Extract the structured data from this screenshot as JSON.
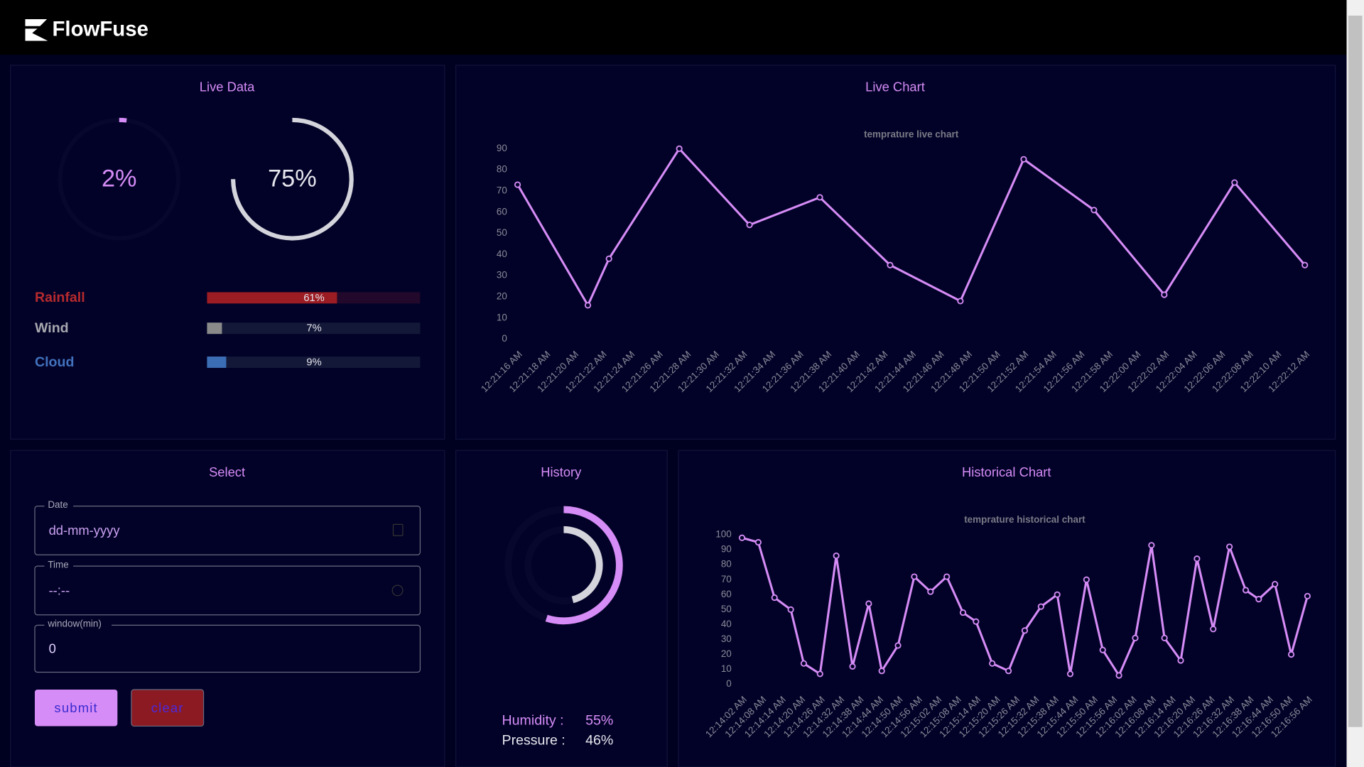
{
  "header": {
    "brand": "FlowFuse"
  },
  "live_data": {
    "title": "Live Data",
    "gauges": [
      {
        "value": 2,
        "label": "2%",
        "color": "#d68cf6"
      },
      {
        "value": 75,
        "label": "75%",
        "color": "#d4d4dc"
      }
    ],
    "bars": [
      {
        "name": "Rainfall",
        "value": 61,
        "label": "61%",
        "color": "#9b1c22"
      },
      {
        "name": "Wind",
        "value": 7,
        "label": "7%",
        "color": "#8a8a8a"
      },
      {
        "name": "Cloud",
        "value": 9,
        "label": "9%",
        "color": "#3b6db5"
      }
    ]
  },
  "live_chart": {
    "title": "Live Chart",
    "chart_data": {
      "type": "line",
      "title": "temprature live chart",
      "x": [
        0,
        5,
        6.5,
        11.5,
        16.5,
        21.5,
        26.5,
        31.5,
        36,
        41,
        46,
        51,
        56
      ],
      "series": [
        {
          "color": "#d68cf6",
          "values": [
            73,
            16,
            38,
            90,
            54,
            67,
            35,
            18,
            85,
            61,
            21,
            74,
            35
          ]
        }
      ],
      "xlim": [
        0,
        56
      ],
      "xticks": [
        {
          "value": 0,
          "label": "12:21:16 AM"
        },
        {
          "value": 2,
          "label": "12:21:18 AM"
        },
        {
          "value": 4,
          "label": "12:21:20 AM"
        },
        {
          "value": 6,
          "label": "12:21:22 AM"
        },
        {
          "value": 8,
          "label": "12:21:24 AM"
        },
        {
          "value": 10,
          "label": "12:21:26 AM"
        },
        {
          "value": 12,
          "label": "12:21:28 AM"
        },
        {
          "value": 14,
          "label": "12:21:30 AM"
        },
        {
          "value": 16,
          "label": "12:21:32 AM"
        },
        {
          "value": 18,
          "label": "12:21:34 AM"
        },
        {
          "value": 20,
          "label": "12:21:36 AM"
        },
        {
          "value": 22,
          "label": "12:21:38 AM"
        },
        {
          "value": 24,
          "label": "12:21:40 AM"
        },
        {
          "value": 26,
          "label": "12:21:42 AM"
        },
        {
          "value": 28,
          "label": "12:21:44 AM"
        },
        {
          "value": 30,
          "label": "12:21:46 AM"
        },
        {
          "value": 32,
          "label": "12:21:48 AM"
        },
        {
          "value": 34,
          "label": "12:21:50 AM"
        },
        {
          "value": 36,
          "label": "12:21:52 AM"
        },
        {
          "value": 38,
          "label": "12:21:54 AM"
        },
        {
          "value": 40,
          "label": "12:21:56 AM"
        },
        {
          "value": 42,
          "label": "12:21:58 AM"
        },
        {
          "value": 44,
          "label": "12:22:00 AM"
        },
        {
          "value": 46,
          "label": "12:22:02 AM"
        },
        {
          "value": 48,
          "label": "12:22:04 AM"
        },
        {
          "value": 50,
          "label": "12:22:06 AM"
        },
        {
          "value": 52,
          "label": "12:22:08 AM"
        },
        {
          "value": 54,
          "label": "12:22:10 AM"
        },
        {
          "value": 56,
          "label": "12:22:12 AM"
        }
      ],
      "ylim": [
        0,
        90
      ],
      "yticks": [
        0,
        10,
        20,
        30,
        40,
        50,
        60,
        70,
        80,
        90
      ]
    }
  },
  "select": {
    "title": "Select",
    "fields": [
      {
        "label": "Date",
        "value": "dd-mm-yyyy"
      },
      {
        "label": "Time",
        "value": "--:--"
      },
      {
        "label": "window(min)",
        "value": "0"
      }
    ],
    "buttons": [
      "submit",
      "clear"
    ]
  },
  "history": {
    "title": "History",
    "gauges": [
      {
        "name": "Humidity :",
        "value": 55,
        "label": "55%",
        "color": "#d68cf6"
      },
      {
        "name": "Pressure :",
        "value": 46,
        "label": "46%",
        "color": "#d4d4dc"
      }
    ]
  },
  "historical_chart": {
    "title": "Historical Chart",
    "chart_data": {
      "type": "line",
      "title": "temprature historical chart",
      "x": [
        0,
        5,
        10,
        15,
        19,
        24,
        29,
        34,
        39,
        43,
        48,
        53,
        58,
        63,
        68,
        72,
        77,
        82,
        87,
        92,
        97,
        101,
        106,
        111,
        116,
        121,
        126,
        130,
        135,
        140,
        145,
        150,
        155,
        159,
        164,
        169,
        174
      ],
      "series": [
        {
          "color": "#d68cf6",
          "values": [
            98,
            95,
            58,
            50,
            14,
            7,
            86,
            12,
            54,
            9,
            26,
            72,
            62,
            72,
            48,
            42,
            14,
            9,
            36,
            52,
            60,
            7,
            70,
            23,
            6,
            31,
            93,
            31,
            16,
            84,
            37,
            92,
            63,
            57,
            67,
            20,
            59
          ]
        }
      ],
      "xlim": [
        0,
        174
      ],
      "xticks": [
        {
          "value": 0,
          "label": "12:14:02 AM"
        },
        {
          "value": 6,
          "label": "12:14:08 AM"
        },
        {
          "value": 12,
          "label": "12:14:14 AM"
        },
        {
          "value": 18,
          "label": "12:14:20 AM"
        },
        {
          "value": 24,
          "label": "12:14:26 AM"
        },
        {
          "value": 30,
          "label": "12:14:32 AM"
        },
        {
          "value": 36,
          "label": "12:14:38 AM"
        },
        {
          "value": 42,
          "label": "12:14:44 AM"
        },
        {
          "value": 48,
          "label": "12:14:50 AM"
        },
        {
          "value": 54,
          "label": "12:14:56 AM"
        },
        {
          "value": 60,
          "label": "12:15:02 AM"
        },
        {
          "value": 66,
          "label": "12:15:08 AM"
        },
        {
          "value": 72,
          "label": "12:15:14 AM"
        },
        {
          "value": 78,
          "label": "12:15:20 AM"
        },
        {
          "value": 84,
          "label": "12:15:26 AM"
        },
        {
          "value": 90,
          "label": "12:15:32 AM"
        },
        {
          "value": 96,
          "label": "12:15:38 AM"
        },
        {
          "value": 102,
          "label": "12:15:44 AM"
        },
        {
          "value": 108,
          "label": "12:15:50 AM"
        },
        {
          "value": 114,
          "label": "12:15:56 AM"
        },
        {
          "value": 120,
          "label": "12:16:02 AM"
        },
        {
          "value": 126,
          "label": "12:16:08 AM"
        },
        {
          "value": 132,
          "label": "12:16:14 AM"
        },
        {
          "value": 138,
          "label": "12:16:20 AM"
        },
        {
          "value": 144,
          "label": "12:16:26 AM"
        },
        {
          "value": 150,
          "label": "12:16:32 AM"
        },
        {
          "value": 156,
          "label": "12:16:38 AM"
        },
        {
          "value": 162,
          "label": "12:16:44 AM"
        },
        {
          "value": 168,
          "label": "12:16:50 AM"
        },
        {
          "value": 174,
          "label": "12:16:56 AM"
        }
      ],
      "ylim": [
        0,
        100
      ],
      "yticks": [
        0,
        10,
        20,
        30,
        40,
        50,
        60,
        70,
        80,
        90,
        100
      ]
    }
  }
}
